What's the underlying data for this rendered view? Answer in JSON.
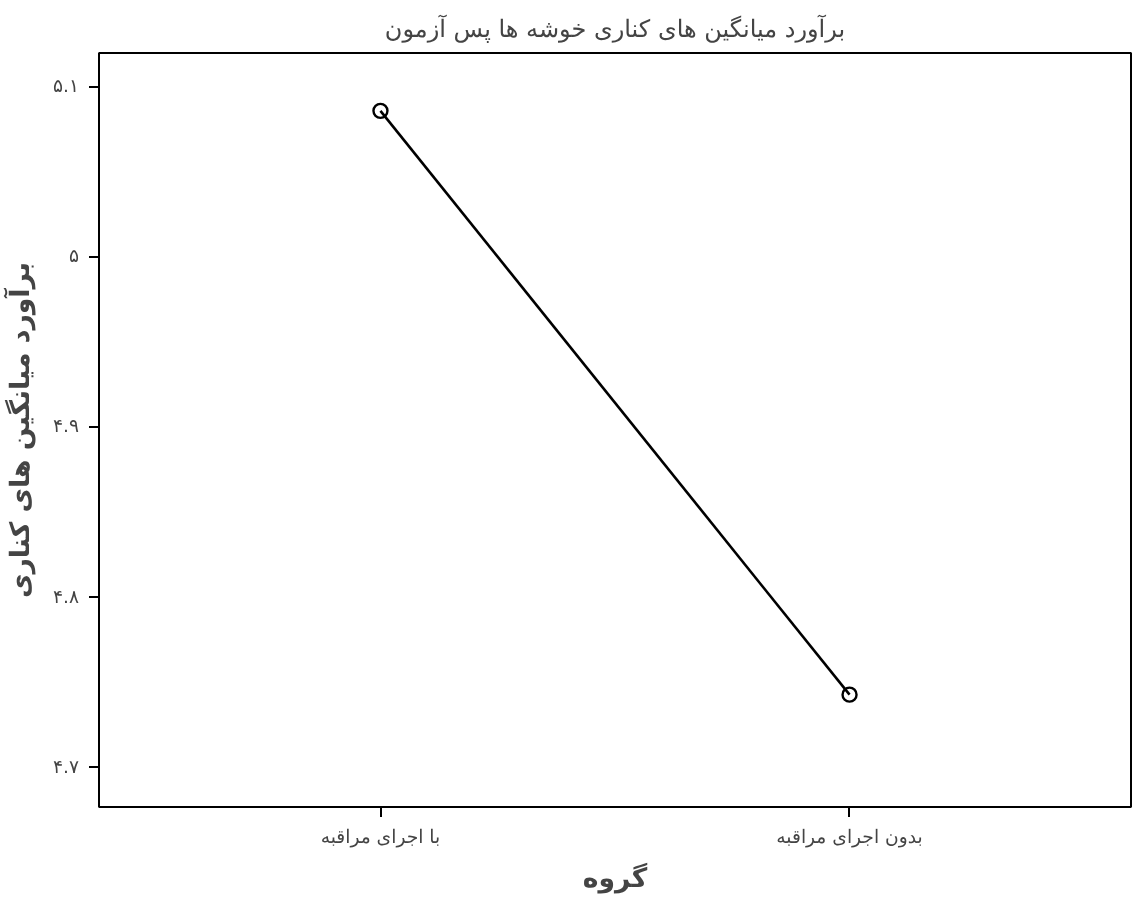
{
  "chart_data": {
    "type": "line",
    "title": "برآورد میانگین های کناری خوشه ها پس آزمون",
    "xlabel": "گروه",
    "ylabel": "برآورد میانگین های کناری",
    "categories": [
      "با اجرای مراقبه",
      "بدون اجرای مراقبه"
    ],
    "series": [
      {
        "color": "#000000",
        "values": [
          5.086,
          4.743
        ]
      }
    ],
    "ylim": [
      4.677,
      5.12
    ],
    "yticks": [
      {
        "value": 4.7,
        "label": "۴.۷"
      },
      {
        "value": 4.8,
        "label": "۴.۸"
      },
      {
        "value": 4.9,
        "label": "۴.۹"
      },
      {
        "value": 5.0,
        "label": "۵"
      },
      {
        "value": 5.1,
        "label": "۵.۱"
      }
    ],
    "grid": false,
    "marker": "circle",
    "line_style": "solid"
  }
}
